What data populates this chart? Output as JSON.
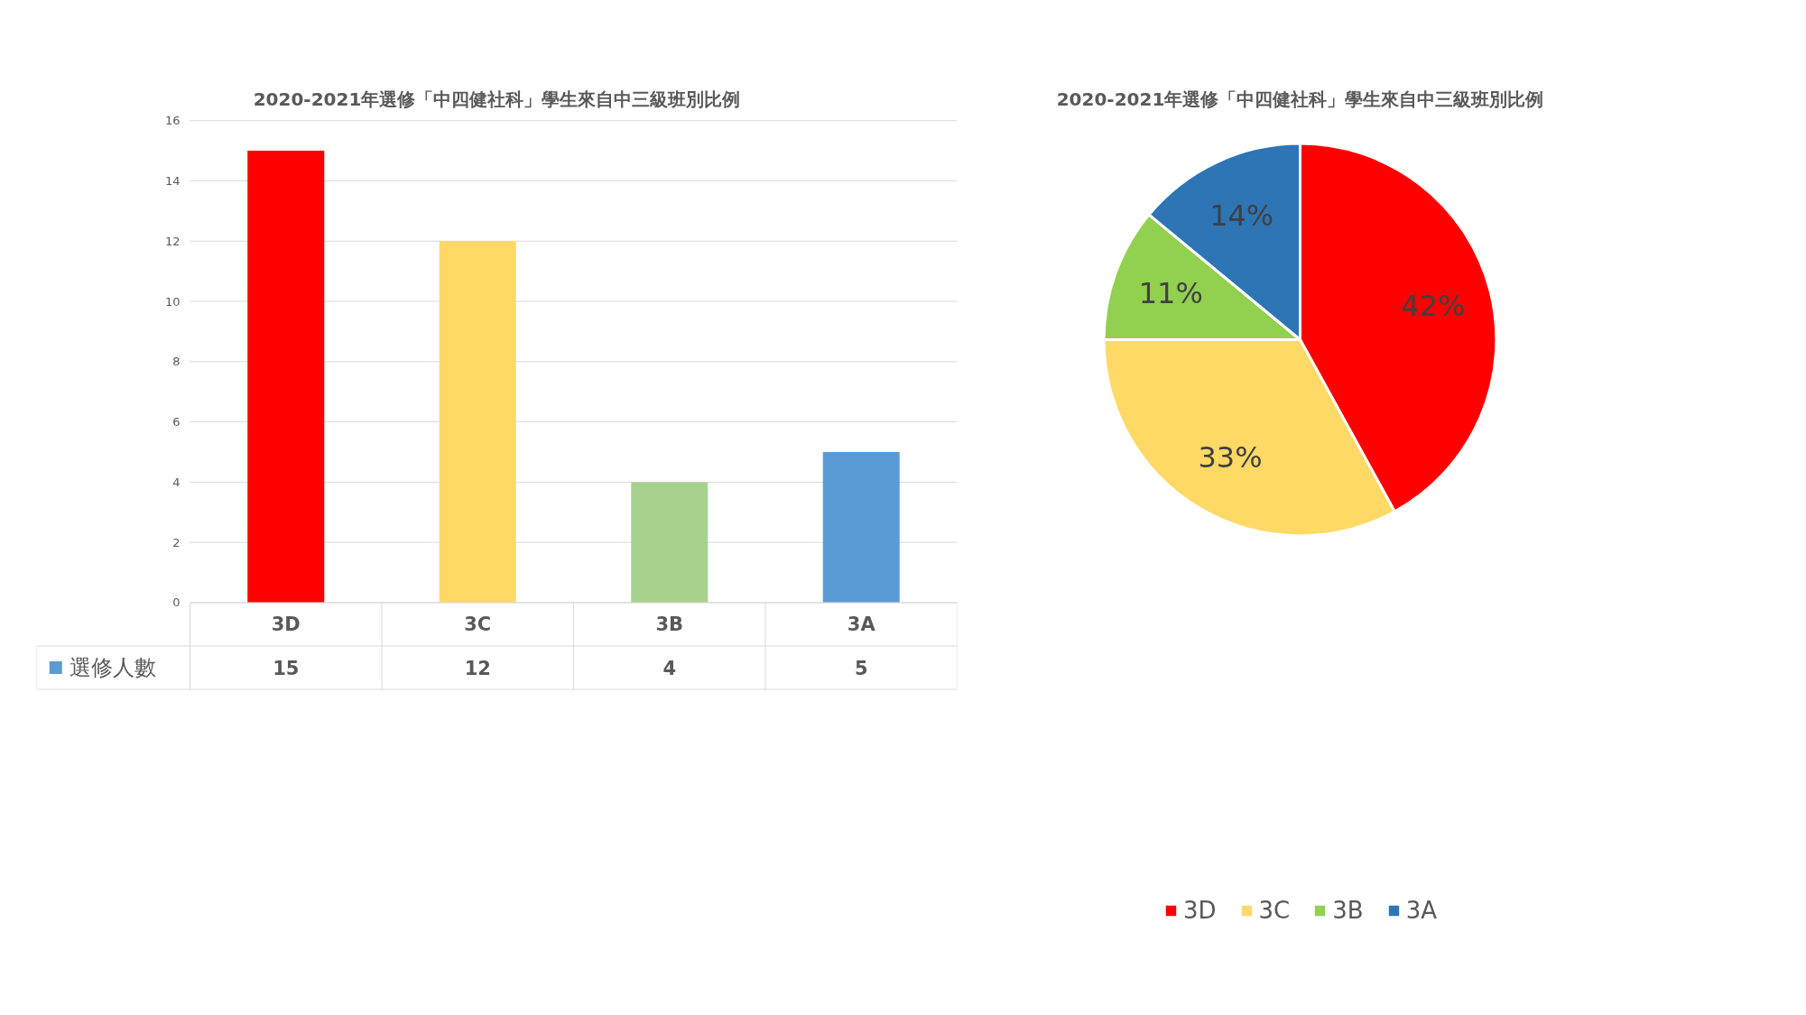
{
  "chart_data": [
    {
      "type": "bar",
      "title": "2020-2021年選修「中四健社科」學生來自中三級班別比例",
      "categories": [
        "3D",
        "3C",
        "3B",
        "3A"
      ],
      "series": [
        {
          "name": "選修人數",
          "color": "#5b9bd5",
          "colors": [
            "#ff0000",
            "#ffd966",
            "#a9d18e",
            "#5b9bd5"
          ],
          "values": [
            15,
            12,
            4,
            5
          ]
        }
      ],
      "ylim": [
        0,
        16
      ],
      "yticks": [
        0,
        2,
        4,
        6,
        8,
        10,
        12,
        14,
        16
      ],
      "grid": "y",
      "data_labels": true
    },
    {
      "type": "pie",
      "title": "2020-2021年選修「中四健社科」學生來自中三級班別比例",
      "categories": [
        "3D",
        "3C",
        "3B",
        "3A"
      ],
      "values": [
        42,
        33,
        11,
        14
      ],
      "colors": [
        "#ff0000",
        "#ffd966",
        "#92d050",
        "#2e75b6"
      ],
      "value_labels": [
        "42%",
        "33%",
        "11%",
        "14%"
      ],
      "legend": "bottom"
    }
  ]
}
